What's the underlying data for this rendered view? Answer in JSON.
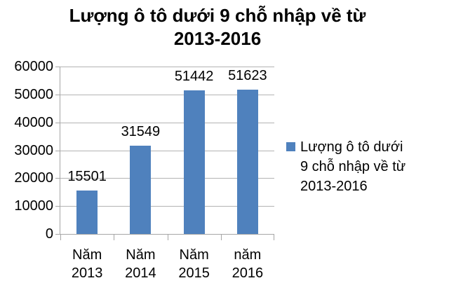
{
  "title_lines": [
    "Lượng ô tô dưới 9 chỗ nhập về từ",
    "2013-2016"
  ],
  "legend_lines": [
    "Lượng ô tô dưới",
    "9 chỗ nhập về từ",
    "2013-2016"
  ],
  "colors": {
    "bar": "#4F81BD",
    "gridline": "#B3B3B3",
    "axis": "#A6A6A6",
    "text": "#000000",
    "background": "#FFFFFF"
  },
  "chart_data": {
    "type": "bar",
    "title": "Lượng ô tô dưới 9 chỗ nhập về từ 2013-2016",
    "categories": [
      "Năm 2013",
      "Năm 2014",
      "Năm 2015",
      "năm 2016"
    ],
    "values": [
      15501,
      31549,
      51442,
      51623
    ],
    "series": [
      {
        "name": "Lượng ô tô dưới 9 chỗ nhập về từ 2013-2016",
        "values": [
          15501,
          31549,
          51442,
          51623
        ]
      }
    ],
    "xlabel": "",
    "ylabel": "",
    "ylim": [
      0,
      60000
    ],
    "yticks": [
      0,
      10000,
      20000,
      30000,
      40000,
      50000,
      60000
    ],
    "grid": true,
    "data_labels": true,
    "legend_position": "right"
  }
}
